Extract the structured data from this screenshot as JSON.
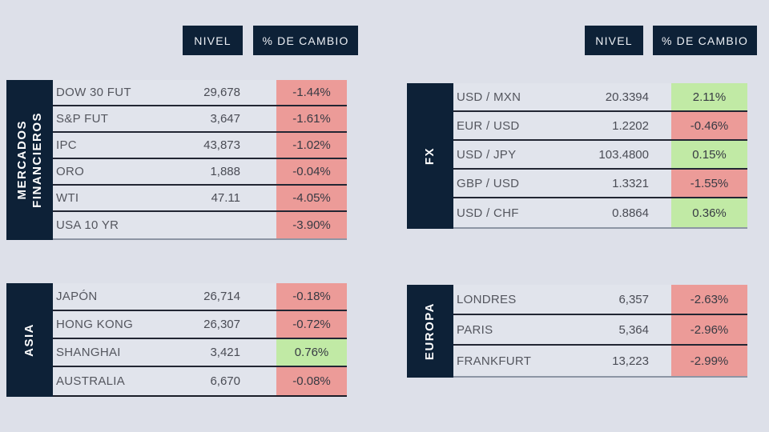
{
  "colors": {
    "background": "#dde0e9",
    "navy": "#0d2137",
    "negative_cell": "#ec9b98",
    "positive_cell": "#c1eaa5",
    "row_background": "#e1e4ec"
  },
  "column_headers": {
    "nivel": "NIVEL",
    "cambio": "% DE CAMBIO"
  },
  "sections": [
    {
      "id": "mercados",
      "title": "MERCADOS FINANCIEROS",
      "title_lines": [
        "MERCADOS",
        "FINANCIEROS"
      ],
      "rows": [
        {
          "label": "DOW 30 FUT",
          "nivel": "29,678",
          "cambio": "-1.44%",
          "direction": "negative"
        },
        {
          "label": "S&P FUT",
          "nivel": "3,647",
          "cambio": "-1.61%",
          "direction": "negative"
        },
        {
          "label": "IPC",
          "nivel": "43,873",
          "cambio": "-1.02%",
          "direction": "negative"
        },
        {
          "label": "ORO",
          "nivel": "1,888",
          "cambio": "-0.04%",
          "direction": "negative"
        },
        {
          "label": "WTI",
          "nivel": "47.11",
          "cambio": "-4.05%",
          "direction": "negative"
        },
        {
          "label": "USA 10 YR",
          "nivel": "",
          "cambio": "-3.90%",
          "direction": "negative"
        }
      ]
    },
    {
      "id": "fx",
      "title": "FX",
      "title_lines": [
        "FX"
      ],
      "rows": [
        {
          "label": "USD / MXN",
          "nivel": "20.3394",
          "cambio": "2.11%",
          "direction": "positive"
        },
        {
          "label": "EUR / USD",
          "nivel": "1.2202",
          "cambio": "-0.46%",
          "direction": "negative"
        },
        {
          "label": "USD / JPY",
          "nivel": "103.4800",
          "cambio": "0.15%",
          "direction": "positive"
        },
        {
          "label": "GBP / USD",
          "nivel": "1.3321",
          "cambio": "-1.55%",
          "direction": "negative"
        },
        {
          "label": "USD / CHF",
          "nivel": "0.8864",
          "cambio": "0.36%",
          "direction": "positive"
        }
      ]
    },
    {
      "id": "asia",
      "title": "ASIA",
      "title_lines": [
        "ASIA"
      ],
      "rows": [
        {
          "label": "JAPÓN",
          "nivel": "26,714",
          "cambio": "-0.18%",
          "direction": "negative"
        },
        {
          "label": "HONG KONG",
          "nivel": "26,307",
          "cambio": "-0.72%",
          "direction": "negative"
        },
        {
          "label": "SHANGHAI",
          "nivel": "3,421",
          "cambio": "0.76%",
          "direction": "positive"
        },
        {
          "label": "AUSTRALIA",
          "nivel": "6,670",
          "cambio": "-0.08%",
          "direction": "negative"
        }
      ]
    },
    {
      "id": "europa",
      "title": "EUROPA",
      "title_lines": [
        "EUROPA"
      ],
      "rows": [
        {
          "label": "LONDRES",
          "nivel": "6,357",
          "cambio": "-2.63%",
          "direction": "negative"
        },
        {
          "label": "PARIS",
          "nivel": "5,364",
          "cambio": "-2.96%",
          "direction": "negative"
        },
        {
          "label": "FRANKFURT",
          "nivel": "13,223",
          "cambio": "-2.99%",
          "direction": "negative"
        }
      ]
    }
  ]
}
